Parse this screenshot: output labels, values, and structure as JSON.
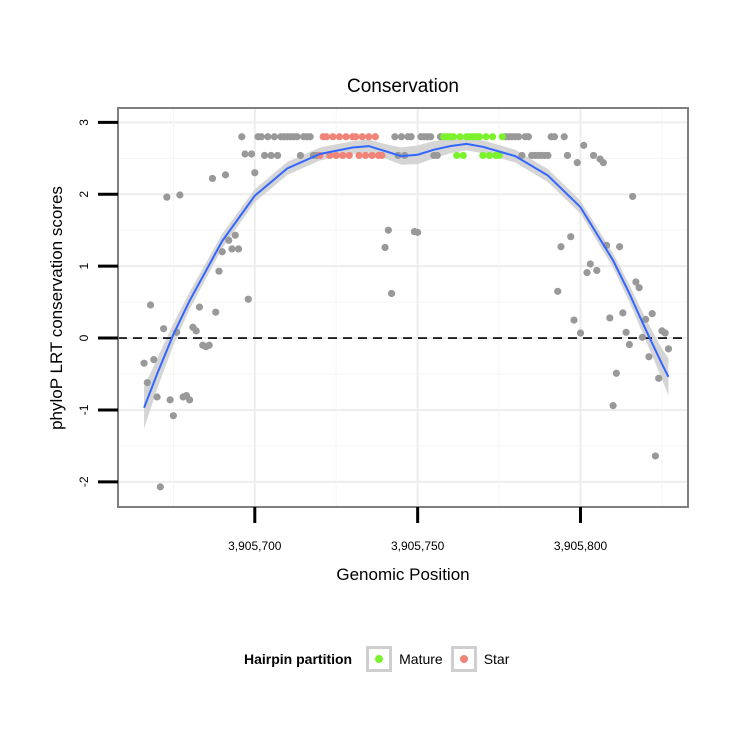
{
  "chart_data": {
    "type": "scatter",
    "title": "Conservation",
    "xlabel": "Genomic Position",
    "ylabel": "phyloP LRT conservation scores",
    "xlim": [
      3905658,
      3905833
    ],
    "ylim": [
      -2.35,
      3.2
    ],
    "x_ticks": [
      {
        "value": 3905700,
        "label": "3,905,700"
      },
      {
        "value": 3905750,
        "label": "3,905,750"
      },
      {
        "value": 3905800,
        "label": "3,905,800"
      }
    ],
    "y_ticks": [
      {
        "value": -2,
        "label": "-2"
      },
      {
        "value": -1,
        "label": "-1"
      },
      {
        "value": 0,
        "label": "0"
      },
      {
        "value": 1,
        "label": "1"
      },
      {
        "value": 2,
        "label": "2"
      },
      {
        "value": 3,
        "label": "3"
      }
    ],
    "hline": {
      "y": 0,
      "style": "dashed"
    },
    "grid": true,
    "colors": {
      "other": "#999999",
      "Mature": "#7cf22d",
      "Star": "#f08478",
      "smooth": "#3366ff",
      "band": "#d0d0d0"
    },
    "legend": {
      "title": "Hairpin partition",
      "position": "bottom",
      "entries": [
        {
          "label": "Mature",
          "color": "#7cf22d"
        },
        {
          "label": "Star",
          "color": "#f08478"
        }
      ]
    },
    "series": [
      {
        "name": "other",
        "points": [
          [
            3905666,
            -0.35
          ],
          [
            3905667,
            -0.62
          ],
          [
            3905668,
            0.46
          ],
          [
            3905669,
            -0.3
          ],
          [
            3905670,
            -0.82
          ],
          [
            3905671,
            -2.07
          ],
          [
            3905672,
            0.13
          ],
          [
            3905673,
            1.96
          ],
          [
            3905674,
            -0.86
          ],
          [
            3905675,
            -1.08
          ],
          [
            3905676,
            0.08
          ],
          [
            3905677,
            1.99
          ],
          [
            3905678,
            -0.82
          ],
          [
            3905679,
            -0.8
          ],
          [
            3905680,
            -0.86
          ],
          [
            3905681,
            0.15
          ],
          [
            3905682,
            0.1
          ],
          [
            3905683,
            0.43
          ],
          [
            3905684,
            -0.1
          ],
          [
            3905685,
            -0.12
          ],
          [
            3905686,
            -0.1
          ],
          [
            3905687,
            2.22
          ],
          [
            3905688,
            0.36
          ],
          [
            3905689,
            0.93
          ],
          [
            3905690,
            1.2
          ],
          [
            3905691,
            2.27
          ],
          [
            3905692,
            1.36
          ],
          [
            3905693,
            1.24
          ],
          [
            3905694,
            1.43
          ],
          [
            3905695,
            1.24
          ],
          [
            3905696,
            2.8
          ],
          [
            3905697,
            2.56
          ],
          [
            3905698,
            0.54
          ],
          [
            3905699,
            2.56
          ],
          [
            3905700,
            2.3
          ],
          [
            3905701,
            2.8
          ],
          [
            3905702,
            2.8
          ],
          [
            3905703,
            2.54
          ],
          [
            3905704,
            2.8
          ],
          [
            3905705,
            2.54
          ],
          [
            3905706,
            2.8
          ],
          [
            3905707,
            2.54
          ],
          [
            3905708,
            2.8
          ],
          [
            3905709,
            2.8
          ],
          [
            3905710,
            2.8
          ],
          [
            3905711,
            2.8
          ],
          [
            3905712,
            2.8
          ],
          [
            3905713,
            2.8
          ],
          [
            3905714,
            2.54
          ],
          [
            3905715,
            2.8
          ],
          [
            3905716,
            2.8
          ],
          [
            3905717,
            2.8
          ],
          [
            3905718,
            2.54
          ],
          [
            3905719,
            2.54
          ],
          [
            3905740,
            1.26
          ],
          [
            3905741,
            1.5
          ],
          [
            3905742,
            0.62
          ],
          [
            3905743,
            2.8
          ],
          [
            3905744,
            2.54
          ],
          [
            3905745,
            2.8
          ],
          [
            3905746,
            2.54
          ],
          [
            3905747,
            2.8
          ],
          [
            3905748,
            2.8
          ],
          [
            3905749,
            1.48
          ],
          [
            3905750,
            1.47
          ],
          [
            3905751,
            2.8
          ],
          [
            3905752,
            2.8
          ],
          [
            3905753,
            2.8
          ],
          [
            3905754,
            2.8
          ],
          [
            3905755,
            2.54
          ],
          [
            3905756,
            2.54
          ],
          [
            3905757,
            2.8
          ],
          [
            3905777,
            2.8
          ],
          [
            3905778,
            2.8
          ],
          [
            3905779,
            2.8
          ],
          [
            3905780,
            2.8
          ],
          [
            3905781,
            2.8
          ],
          [
            3905782,
            2.54
          ],
          [
            3905783,
            2.8
          ],
          [
            3905784,
            2.8
          ],
          [
            3905785,
            2.54
          ],
          [
            3905786,
            2.54
          ],
          [
            3905787,
            2.54
          ],
          [
            3905788,
            2.54
          ],
          [
            3905789,
            2.54
          ],
          [
            3905790,
            2.54
          ],
          [
            3905791,
            2.8
          ],
          [
            3905792,
            2.8
          ],
          [
            3905793,
            0.65
          ],
          [
            3905794,
            1.27
          ],
          [
            3905795,
            2.8
          ],
          [
            3905796,
            2.54
          ],
          [
            3905797,
            1.41
          ],
          [
            3905798,
            0.25
          ],
          [
            3905799,
            2.44
          ],
          [
            3905800,
            0.07
          ],
          [
            3905801,
            2.68
          ],
          [
            3905802,
            0.91
          ],
          [
            3905803,
            1.03
          ],
          [
            3905804,
            2.54
          ],
          [
            3905805,
            0.94
          ],
          [
            3905806,
            2.49
          ],
          [
            3905807,
            2.44
          ],
          [
            3905808,
            1.29
          ],
          [
            3905809,
            0.28
          ],
          [
            3905810,
            -0.94
          ],
          [
            3905811,
            -0.49
          ],
          [
            3905812,
            1.27
          ],
          [
            3905813,
            0.35
          ],
          [
            3905814,
            0.08
          ],
          [
            3905815,
            -0.09
          ],
          [
            3905816,
            1.97
          ],
          [
            3905817,
            0.78
          ],
          [
            3905818,
            0.7
          ],
          [
            3905819,
            0.01
          ],
          [
            3905820,
            0.26
          ],
          [
            3905821,
            -0.26
          ],
          [
            3905822,
            0.34
          ],
          [
            3905823,
            -1.64
          ],
          [
            3905824,
            -0.56
          ],
          [
            3905825,
            0.1
          ],
          [
            3905826,
            0.07
          ],
          [
            3905827,
            -0.15
          ]
        ]
      },
      {
        "name": "Star",
        "points": [
          [
            3905720,
            2.54
          ],
          [
            3905721,
            2.8
          ],
          [
            3905722,
            2.8
          ],
          [
            3905723,
            2.54
          ],
          [
            3905724,
            2.8
          ],
          [
            3905725,
            2.54
          ],
          [
            3905726,
            2.8
          ],
          [
            3905727,
            2.54
          ],
          [
            3905728,
            2.8
          ],
          [
            3905729,
            2.54
          ],
          [
            3905730,
            2.8
          ],
          [
            3905731,
            2.8
          ],
          [
            3905732,
            2.54
          ],
          [
            3905733,
            2.8
          ],
          [
            3905734,
            2.54
          ],
          [
            3905735,
            2.8
          ],
          [
            3905736,
            2.54
          ],
          [
            3905737,
            2.8
          ],
          [
            3905738,
            2.54
          ],
          [
            3905739,
            2.54
          ]
        ]
      },
      {
        "name": "Mature",
        "points": [
          [
            3905758,
            2.8
          ],
          [
            3905759,
            2.8
          ],
          [
            3905760,
            2.8
          ],
          [
            3905761,
            2.8
          ],
          [
            3905762,
            2.54
          ],
          [
            3905763,
            2.8
          ],
          [
            3905764,
            2.54
          ],
          [
            3905765,
            2.8
          ],
          [
            3905766,
            2.8
          ],
          [
            3905767,
            2.8
          ],
          [
            3905768,
            2.8
          ],
          [
            3905769,
            2.8
          ],
          [
            3905770,
            2.54
          ],
          [
            3905771,
            2.8
          ],
          [
            3905772,
            2.54
          ],
          [
            3905773,
            2.8
          ],
          [
            3905774,
            2.54
          ],
          [
            3905775,
            2.54
          ],
          [
            3905776,
            2.8
          ]
        ]
      }
    ],
    "smooth": {
      "x": [
        3905666,
        3905670,
        3905675,
        3905680,
        3905690,
        3905700,
        3905710,
        3905720,
        3905730,
        3905735,
        3905740,
        3905745,
        3905750,
        3905755,
        3905760,
        3905765,
        3905770,
        3905780,
        3905790,
        3905800,
        3905810,
        3905815,
        3905820,
        3905825,
        3905827
      ],
      "y": [
        -0.97,
        -0.5,
        0.05,
        0.52,
        1.35,
        1.98,
        2.36,
        2.56,
        2.65,
        2.67,
        2.6,
        2.53,
        2.55,
        2.62,
        2.67,
        2.7,
        2.66,
        2.53,
        2.26,
        1.82,
        1.08,
        0.62,
        0.12,
        -0.36,
        -0.54
      ],
      "se": [
        0.29,
        0.21,
        0.15,
        0.12,
        0.1,
        0.09,
        0.09,
        0.09,
        0.09,
        0.09,
        0.1,
        0.12,
        0.13,
        0.12,
        0.1,
        0.09,
        0.09,
        0.09,
        0.09,
        0.09,
        0.1,
        0.12,
        0.15,
        0.21,
        0.26
      ]
    }
  }
}
